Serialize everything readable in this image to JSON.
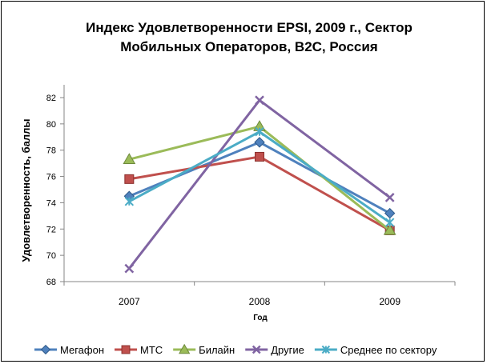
{
  "chart_data": {
    "type": "line",
    "title_lines": [
      "Индекс Удовлетворенности EPSI, 2009 г., Сектор",
      "Мобильных Операторов, B2C, Россия"
    ],
    "xlabel": "Год",
    "ylabel": "Удовлетворенность, баллы",
    "categories": [
      "2007",
      "2008",
      "2009"
    ],
    "ylim": [
      68,
      82
    ],
    "yticks": [
      68,
      70,
      72,
      74,
      76,
      78,
      80,
      82
    ],
    "grid": false,
    "legend": "bottom",
    "series": [
      {
        "name": "Мегафон",
        "color": "#4F81BD",
        "marker": "diamond",
        "values": [
          74.5,
          78.6,
          73.2
        ]
      },
      {
        "name": "МТС",
        "color": "#C0504D",
        "marker": "square",
        "values": [
          75.8,
          77.5,
          71.9
        ]
      },
      {
        "name": "Билайн",
        "color": "#9BBB59",
        "marker": "triangle",
        "values": [
          77.3,
          79.8,
          71.9
        ]
      },
      {
        "name": "Другие",
        "color": "#8064A2",
        "marker": "x",
        "values": [
          69.0,
          81.8,
          74.4
        ]
      },
      {
        "name": "Среднее по сектору",
        "color": "#4BACC6",
        "marker": "star",
        "values": [
          74.1,
          79.4,
          72.5
        ]
      }
    ]
  }
}
